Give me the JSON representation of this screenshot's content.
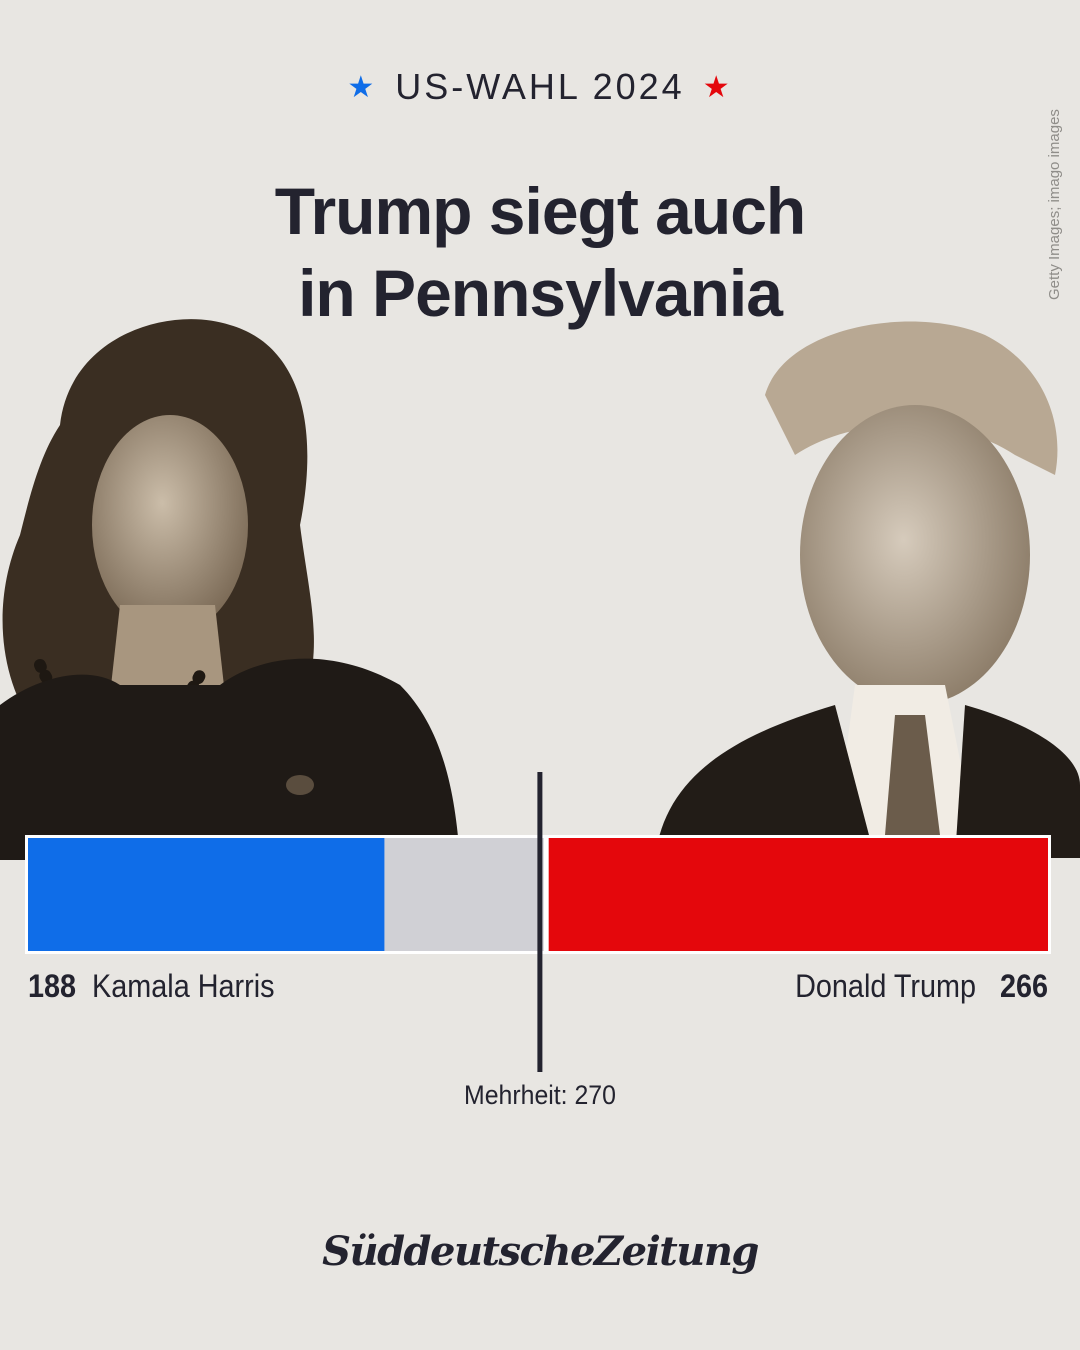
{
  "header": {
    "kicker": "US-WAHL 2024",
    "kicker_star_left_color": "#0f6de8",
    "kicker_star_right_color": "#e4070c",
    "headline_line1": "Trump siegt auch",
    "headline_line2": "in Pennsylvania"
  },
  "credit": "Getty Images; imago images",
  "photos": {
    "left_icon": "portrait-photo-icon",
    "right_icon": "portrait-photo-icon"
  },
  "chart_data": {
    "type": "bar",
    "orientation": "horizontal-stacked",
    "total": 538,
    "series": [
      {
        "name": "Kamala Harris",
        "value": 188,
        "color": "#0f6de8",
        "side": "left"
      },
      {
        "name": "Donald Trump",
        "value": 266,
        "color": "#e4070c",
        "side": "right"
      }
    ],
    "remaining_color": "#d0d0d5",
    "threshold": {
      "label": "Mehrheit: 270",
      "value": 270
    }
  },
  "labels": {
    "harris_value": "188",
    "harris_name": "Kamala Harris",
    "trump_name": "Donald Trump",
    "trump_value": "266"
  },
  "footer": {
    "logo": "SüddeutscheZeitung"
  }
}
